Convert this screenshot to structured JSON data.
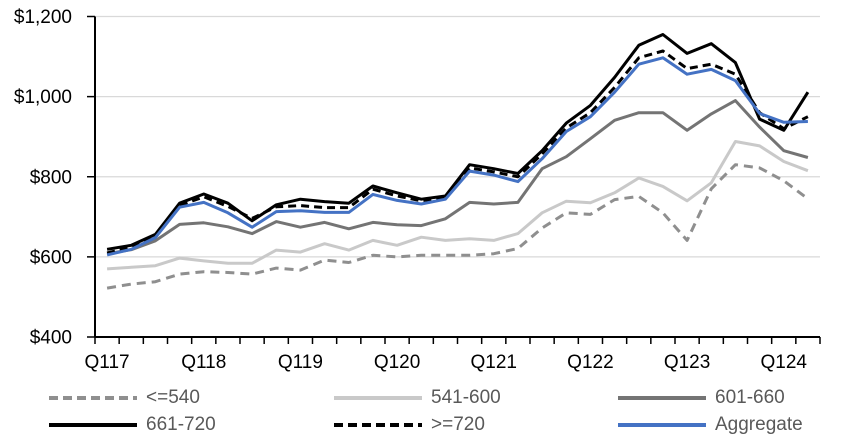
{
  "colors": {
    "background": "#ffffff",
    "grid": "#d9d9d9",
    "axis": "#000000",
    "axis_text": "#000000",
    "legend_text": "#595959",
    "accent_blue": "#4472c4"
  },
  "chart_data": {
    "type": "line",
    "title": "",
    "xlabel": "",
    "ylabel": "",
    "grid": "horizontal",
    "legend_position": "bottom",
    "x_axis": {
      "labels": [
        "Q117",
        "Q118",
        "Q119",
        "Q120",
        "Q121",
        "Q122",
        "Q123",
        "Q124"
      ],
      "label_category_indices": [
        0,
        4,
        8,
        12,
        16,
        20,
        24,
        28
      ],
      "categories_count": 30
    },
    "y_axis": {
      "min": 400,
      "max": 1200,
      "step": 200,
      "tick_labels": [
        "$400",
        "$600",
        "$800",
        "$1,000",
        "$1,200"
      ]
    },
    "series": [
      {
        "name": "<=540",
        "color": "#8f8f8f",
        "dash": "9 6",
        "width": 3,
        "values": [
          522,
          532,
          538,
          557,
          563,
          561,
          557,
          572,
          567,
          592,
          586,
          604,
          600,
          604,
          604,
          604,
          608,
          621,
          672,
          710,
          706,
          743,
          751,
          710,
          641,
          770,
          830,
          822,
          790,
          745
        ]
      },
      {
        "name": "541-600",
        "color": "#c9c9c9",
        "dash": "",
        "width": 3,
        "values": [
          570,
          574,
          578,
          597,
          590,
          584,
          584,
          617,
          612,
          633,
          617,
          641,
          629,
          649,
          641,
          645,
          641,
          658,
          710,
          739,
          735,
          760,
          797,
          776,
          740,
          785,
          888,
          877,
          838,
          815
        ]
      },
      {
        "name": "601-660",
        "color": "#747474",
        "dash": "",
        "width": 3,
        "values": [
          608,
          618,
          640,
          681,
          685,
          675,
          658,
          688,
          674,
          686,
          670,
          686,
          680,
          678,
          695,
          736,
          732,
          736,
          820,
          850,
          895,
          941,
          960,
          960,
          916,
          957,
          990,
          924,
          865,
          848
        ]
      },
      {
        "name": "661-720",
        "color": "#000000",
        "dash": "",
        "width": 3,
        "values": [
          619,
          629,
          656,
          734,
          757,
          734,
          690,
          730,
          744,
          738,
          734,
          777,
          760,
          744,
          752,
          830,
          820,
          808,
          865,
          934,
          978,
          1048,
          1128,
          1155,
          1108,
          1132,
          1085,
          944,
          916,
          1011
        ]
      },
      {
        "name": ">=720",
        "color": "#000000",
        "dash": "8 5",
        "width": 3,
        "values": [
          610,
          624,
          650,
          728,
          750,
          726,
          696,
          725,
          728,
          723,
          723,
          769,
          752,
          740,
          748,
          822,
          812,
          800,
          857,
          922,
          960,
          1023,
          1097,
          1114,
          1070,
          1081,
          1056,
          960,
          920,
          950
        ]
      },
      {
        "name": "Aggregate",
        "color": "#4472c4",
        "dash": "",
        "width": 3,
        "values": [
          605,
          619,
          648,
          724,
          736,
          710,
          674,
          713,
          715,
          711,
          711,
          756,
          741,
          732,
          744,
          814,
          804,
          788,
          845,
          913,
          950,
          1011,
          1081,
          1097,
          1056,
          1068,
          1040,
          958,
          936,
          938
        ]
      }
    ]
  }
}
